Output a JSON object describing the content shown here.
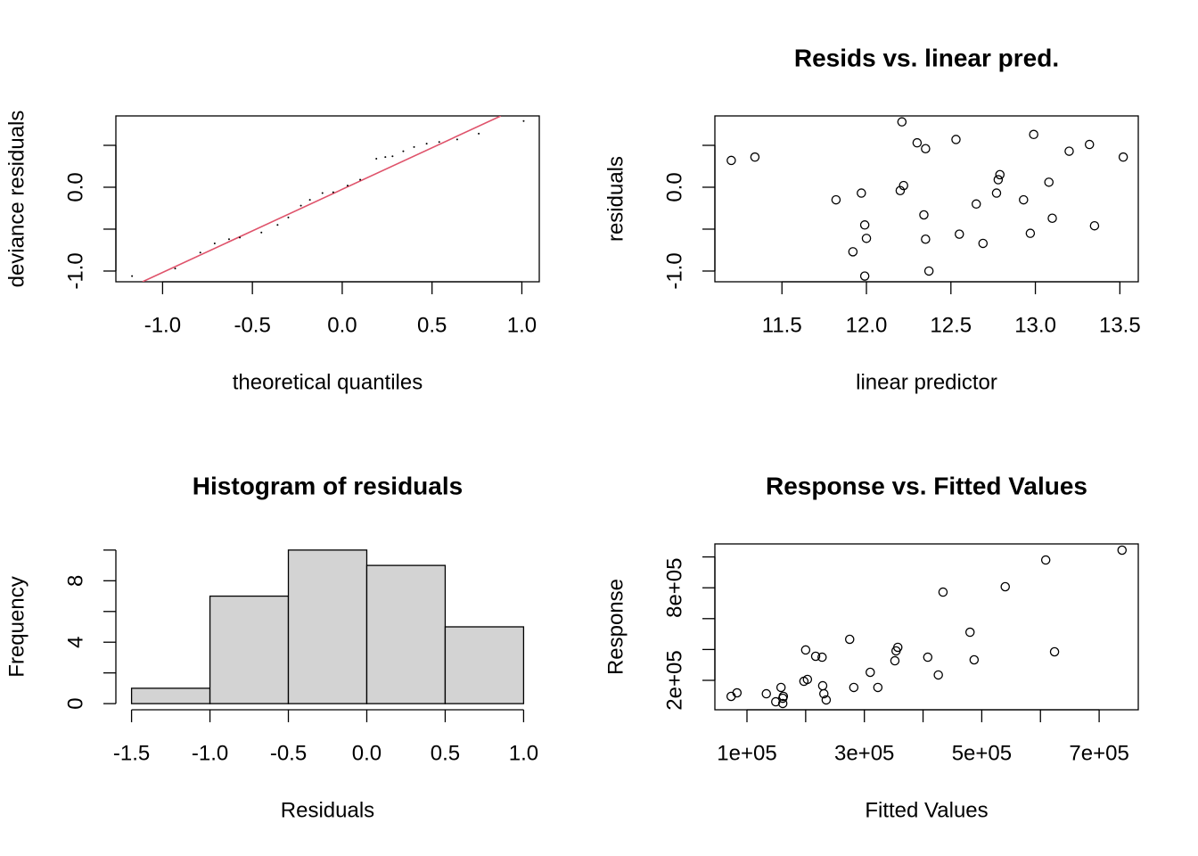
{
  "chart_data": [
    {
      "type": "qq",
      "xlabel": "theoretical quantiles",
      "ylabel": "deviance residuals",
      "box": true,
      "color": "#000000",
      "x": [
        -1.17,
        -0.93,
        -0.79,
        -0.71,
        -0.63,
        -0.57,
        -0.45,
        -0.36,
        -0.3,
        -0.23,
        -0.18,
        -0.11,
        -0.05,
        0.03,
        0.1,
        0.19,
        0.24,
        0.28,
        0.34,
        0.4,
        0.47,
        0.54,
        0.64,
        0.76,
        1.01
      ],
      "y": [
        -1.06,
        -0.97,
        -0.78,
        -0.67,
        -0.62,
        -0.6,
        -0.54,
        -0.45,
        -0.36,
        -0.22,
        -0.15,
        -0.07,
        -0.06,
        0.02,
        0.09,
        0.34,
        0.36,
        0.37,
        0.43,
        0.48,
        0.52,
        0.54,
        0.57,
        0.64,
        0.79
      ],
      "reference_line": {
        "color": "#DF536B",
        "x": [
          -1.112,
          0.883
        ],
        "y": [
          -1.128,
          0.851
        ]
      },
      "xlim": [
        -1.26,
        1.097
      ],
      "ylim": [
        -1.128,
        0.851
      ],
      "xticks": [
        {
          "value": -1,
          "label": "-1.0"
        },
        {
          "value": -0.5,
          "label": "-0.5"
        },
        {
          "value": 0,
          "label": "0.0"
        },
        {
          "value": 0.5,
          "label": "0.5"
        },
        {
          "value": 1,
          "label": "1.0"
        }
      ],
      "yticks": [
        {
          "value": -1,
          "label": "-1.0"
        },
        {
          "value": -0.5,
          "label": null
        },
        {
          "value": 0,
          "label": "0.0"
        },
        {
          "value": 0.5,
          "label": null
        }
      ]
    },
    {
      "type": "scatter",
      "title": "Resids vs. linear pred.",
      "xlabel": "linear predictor",
      "ylabel": "residuals",
      "box": true,
      "color": "#000000",
      "x": [
        11.2,
        11.34,
        11.82,
        11.97,
        11.99,
        12.0,
        11.92,
        11.99,
        12.21,
        12.2,
        12.22,
        12.3,
        12.35,
        12.34,
        12.35,
        12.37,
        12.53,
        12.55,
        12.65,
        12.69,
        12.77,
        12.78,
        12.79,
        12.93,
        12.97,
        12.99,
        13.08,
        13.1,
        13.2,
        13.32,
        13.35,
        13.52
      ],
      "y": [
        0.32,
        0.36,
        -0.15,
        -0.07,
        -0.45,
        -0.61,
        -0.77,
        -1.06,
        0.78,
        -0.04,
        0.02,
        0.53,
        0.46,
        -0.33,
        -0.62,
        -1.0,
        0.57,
        -0.56,
        -0.2,
        -0.67,
        -0.07,
        0.09,
        0.15,
        -0.15,
        -0.55,
        0.63,
        0.06,
        -0.37,
        0.43,
        0.51,
        -0.46,
        0.36
      ],
      "xlim": [
        11.103,
        13.609
      ],
      "ylim": [
        -1.128,
        0.851
      ],
      "xticks": [
        11.5,
        {
          "value": 12,
          "label": "12.0"
        },
        12.5,
        {
          "value": 13,
          "label": "13.0"
        },
        13.5
      ],
      "yticks": [
        {
          "value": -1,
          "label": "-1.0"
        },
        {
          "value": -0.5,
          "label": null
        },
        {
          "value": 0,
          "label": "0.0"
        },
        {
          "value": 0.5,
          "label": null
        }
      ]
    },
    {
      "type": "histogram",
      "title": "Histogram of residuals",
      "xlabel": "Residuals",
      "ylabel": "Frequency",
      "box": false,
      "color": "#D3D3D3",
      "bins": [
        -1.5,
        -1,
        -0.5,
        0,
        0.5,
        1
      ],
      "counts": [
        1,
        7,
        10,
        9,
        5
      ],
      "xlim": [
        -1.6,
        1.1
      ],
      "ylim": [
        -0.4,
        10.4
      ],
      "xticks": [
        {
          "value": -1.5,
          "label": "-1.5"
        },
        {
          "value": -1,
          "label": "-1.0"
        },
        {
          "value": -0.5,
          "label": "-0.5"
        },
        {
          "value": 0,
          "label": "0.0"
        },
        {
          "value": 0.5,
          "label": "0.5"
        },
        {
          "value": 1,
          "label": "1.0"
        }
      ],
      "yticks": [
        0,
        {
          "value": 2,
          "label": null
        },
        4,
        {
          "value": 6,
          "label": null
        },
        8,
        {
          "value": 10,
          "label": null
        }
      ]
    },
    {
      "type": "scatter",
      "title": "Response vs. Fitted Values",
      "xlabel": "Fitted Values",
      "ylabel": "Response",
      "box": true,
      "color": "#000000",
      "x": [
        73000,
        83000,
        133000,
        149000,
        158000,
        161000,
        161000,
        162000,
        197000,
        200000,
        203000,
        217000,
        228000,
        229000,
        231000,
        235000,
        275000,
        282000,
        310000,
        323000,
        352000,
        354000,
        357000,
        408000,
        426000,
        434000,
        480000,
        487000,
        540000,
        609000,
        624000,
        739000
      ],
      "y": [
        96000,
        119000,
        113000,
        61000,
        154000,
        84000,
        50000,
        96000,
        194000,
        397000,
        206000,
        356000,
        350000,
        165000,
        113000,
        73000,
        466000,
        154000,
        252000,
        154000,
        327000,
        391000,
        414000,
        350000,
        235000,
        772000,
        512000,
        333000,
        807000,
        980000,
        385000,
        1044000
      ],
      "xlim": [
        45330,
        766667
      ],
      "ylim": [
        9249,
        1084393
      ],
      "xticks": [
        {
          "value": 100000,
          "label": "1e+05"
        },
        {
          "value": 200000,
          "label": null
        },
        {
          "value": 300000,
          "label": "3e+05"
        },
        {
          "value": 400000,
          "label": null
        },
        {
          "value": 500000,
          "label": "5e+05"
        },
        {
          "value": 600000,
          "label": null
        },
        {
          "value": 700000,
          "label": "7e+05"
        }
      ],
      "yticks": [
        {
          "value": 200000,
          "label": "2e+05"
        },
        {
          "value": 400000,
          "label": null
        },
        {
          "value": 600000,
          "label": null
        },
        {
          "value": 800000,
          "label": "8e+05"
        },
        {
          "value": 1000000,
          "label": null
        }
      ]
    }
  ]
}
